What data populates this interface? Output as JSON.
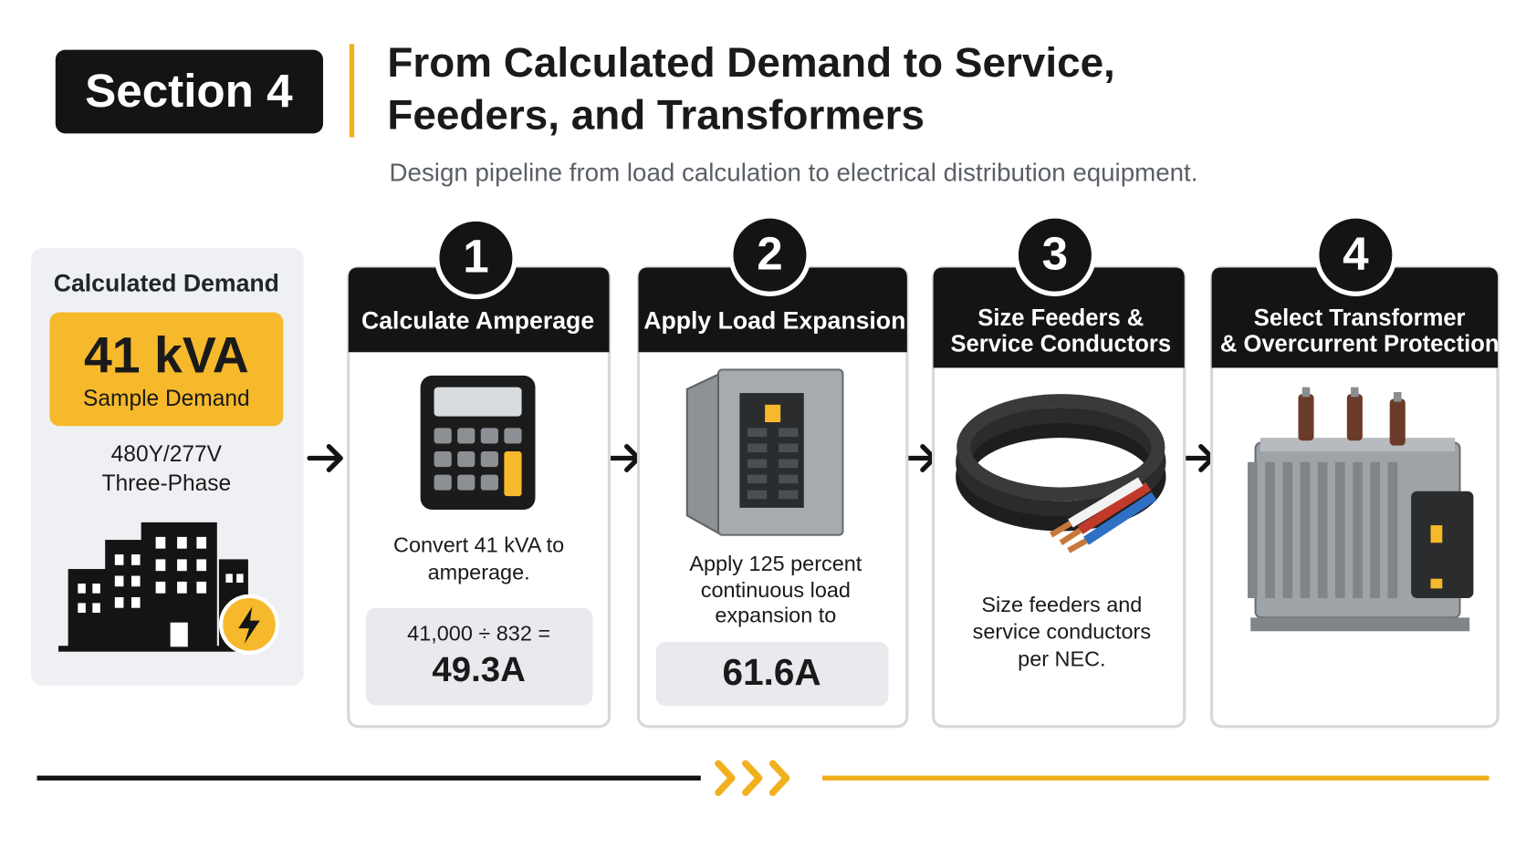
{
  "header": {
    "badge": "Section 4",
    "title_lines": [
      "From Calculated Demand to Service,",
      "Feeders, and Transformers"
    ],
    "subtitle": "Design pipeline from load calculation to electrical distribution equipment."
  },
  "demand": {
    "title": "Calculated Demand",
    "value": "41 kVA",
    "label": "Sample Demand",
    "voltage": "480Y/277V",
    "phase": "Three-Phase"
  },
  "steps": [
    {
      "number": "1",
      "title_lines": [
        "Calculate Amperage"
      ],
      "description_lines": [
        "Convert 41 kVA to",
        "amperage."
      ],
      "formula": "41,000 ÷ 832 =",
      "result": "49.3A"
    },
    {
      "number": "2",
      "title_lines": [
        "Apply Load Expansion"
      ],
      "description_lines": [
        "Apply 125 percent",
        "continuous load",
        "expansion to"
      ],
      "result": "61.6A"
    },
    {
      "number": "3",
      "title_lines": [
        "Size Feeders &",
        "Service Conductors"
      ],
      "description_lines": [
        "Size feeders and",
        "service conductors",
        "per NEC."
      ]
    },
    {
      "number": "4",
      "title_lines": [
        "Select Transformer",
        "& Overcurrent Protection"
      ]
    }
  ]
}
